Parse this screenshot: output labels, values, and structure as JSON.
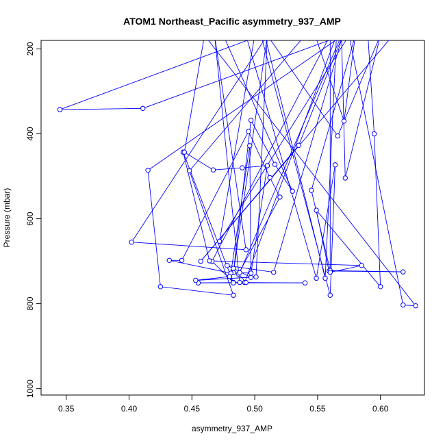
{
  "chart_data": {
    "type": "line",
    "title": "ATOM1 Northeast_Pacific asymmetry_937_AMP",
    "xlabel": "asymmetry_937_AMP",
    "ylabel": "Pressure (mbar)",
    "xlim": [
      0.33,
      0.635
    ],
    "ylim": [
      1015,
      180
    ],
    "y_reversed": true,
    "xticks": [
      0.35,
      0.4,
      0.45,
      0.5,
      0.55,
      0.6
    ],
    "xtick_labels": [
      "0.35",
      "0.40",
      "0.45",
      "0.50",
      "0.55",
      "0.60"
    ],
    "yticks": [
      200,
      400,
      600,
      800,
      1000
    ],
    "ytick_labels": [
      "200",
      "400",
      "600",
      "800",
      "1000"
    ],
    "grid": false,
    "legend": "none",
    "series_color": "#0000ff",
    "series": [
      {
        "points": [
          [
            0.475,
            168
          ],
          [
            0.53,
            535
          ],
          [
            0.516,
            472
          ],
          [
            0.497,
            368
          ],
          [
            0.483,
            727
          ],
          [
            0.51,
            168
          ],
          [
            0.402,
            655
          ],
          [
            0.493,
            673
          ],
          [
            0.468,
            168
          ],
          [
            0.488,
            750
          ],
          [
            0.54,
            751
          ],
          [
            0.455,
            751
          ],
          [
            0.492,
            750
          ],
          [
            0.565,
            168
          ],
          [
            0.556,
            740
          ],
          [
            0.508,
            168
          ],
          [
            0.54,
            168
          ],
          [
            0.448,
            487
          ],
          [
            0.483,
            780
          ],
          [
            0.425,
            760
          ],
          [
            0.415,
            486
          ],
          [
            0.57,
            168
          ],
          [
            0.535,
            427
          ],
          [
            0.457,
            700
          ],
          [
            0.61,
            168
          ],
          [
            0.59,
            168
          ],
          [
            0.595,
            400
          ],
          [
            0.6,
            760
          ],
          [
            0.549,
            580
          ],
          [
            0.559,
            723
          ],
          [
            0.618,
            725
          ],
          [
            0.56,
            722
          ],
          [
            0.545,
            533
          ],
          [
            0.58,
            168
          ],
          [
            0.571,
            370
          ],
          [
            0.548,
            168
          ],
          [
            0.493,
            168
          ],
          [
            0.549,
            740
          ],
          [
            0.564,
            473
          ],
          [
            0.56,
            780
          ],
          [
            0.505,
            168
          ],
          [
            0.345,
            343
          ],
          [
            0.411,
            340
          ],
          [
            0.57,
            168
          ],
          [
            0.515,
            726
          ],
          [
            0.478,
            710
          ],
          [
            0.483,
            717
          ],
          [
            0.497,
            738
          ],
          [
            0.496,
            428
          ],
          [
            0.481,
            728
          ],
          [
            0.432,
            698
          ],
          [
            0.442,
            698
          ],
          [
            0.495,
            394
          ],
          [
            0.512,
            503
          ],
          [
            0.52,
            549
          ],
          [
            0.487,
            730
          ],
          [
            0.493,
            750
          ],
          [
            0.483,
            750
          ],
          [
            0.466,
            700
          ],
          [
            0.56,
            168
          ],
          [
            0.56,
            726
          ],
          [
            0.585,
            710
          ],
          [
            0.464,
            699
          ],
          [
            0.443,
            443
          ],
          [
            0.483,
            751
          ],
          [
            0.48,
            736
          ],
          [
            0.453,
            745
          ],
          [
            0.501,
            737
          ],
          [
            0.51,
            168
          ],
          [
            0.566,
            405
          ],
          [
            0.6,
            168
          ],
          [
            0.572,
            504
          ],
          [
            0.569,
            168
          ],
          [
            0.488,
            727
          ],
          [
            0.497,
            728
          ],
          [
            0.51,
            475
          ],
          [
            0.49,
            480
          ],
          [
            0.467,
            485
          ],
          [
            0.444,
            443
          ],
          [
            0.46,
            168
          ],
          [
            0.628,
            805
          ],
          [
            0.618,
            803
          ],
          [
            0.575,
            168
          ],
          [
            0.472,
            653
          ],
          [
            0.5,
            168
          ]
        ]
      }
    ]
  }
}
